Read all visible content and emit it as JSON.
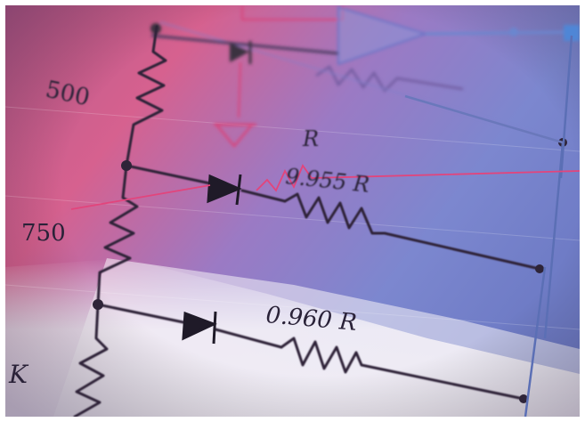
{
  "photo": {
    "labels": {
      "r_500": "500",
      "r_750": "750",
      "r_k": "K",
      "r_top": "R",
      "r_9955": "9.955 R",
      "r_0960": "0.960 R"
    },
    "palette": {
      "paper": "#ece8f3",
      "magenta": "#d0487e",
      "violet": "#6a56b6",
      "blue": "#7da3d8",
      "ink": "#2a2238"
    }
  }
}
